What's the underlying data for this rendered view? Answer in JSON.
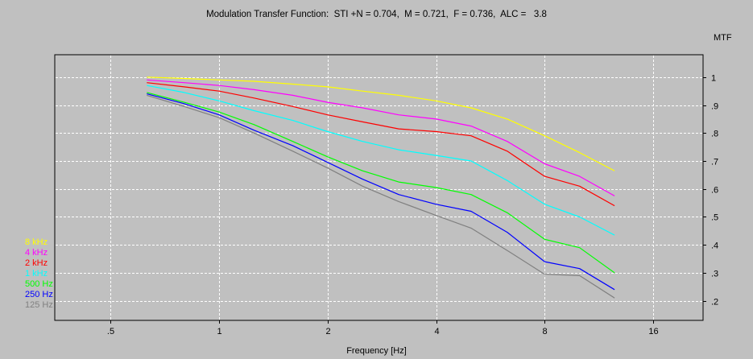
{
  "window_title": "Modulation Transfer Function:  STI +N = 0.704,  M = 0.721,  F = 0.736,  ALC =   3.8",
  "chart_data": {
    "type": "line",
    "title": "Modulation Transfer Function:  STI +N = 0.704,  M = 0.721,  F = 0.736,  ALC =   3.8",
    "xlabel": "Frequency [Hz]",
    "ylabel": "MTF",
    "x_scale": "log2",
    "xlim": [
      0.35,
      22
    ],
    "ylim": [
      0.13,
      1.08
    ],
    "x_ticks": [
      0.5,
      1,
      2,
      4,
      8,
      16
    ],
    "x_tick_labels": [
      ".5",
      "1",
      "2",
      "4",
      "8",
      "16"
    ],
    "y_ticks": [
      0.2,
      0.3,
      0.4,
      0.5,
      0.6,
      0.7,
      0.8,
      0.9,
      1.0
    ],
    "y_tick_labels": [
      ".2",
      ".3",
      ".4",
      ".5",
      ".6",
      ".7",
      ".8",
      ".9",
      "1"
    ],
    "grid": true,
    "legend_position": "left, lower",
    "x": [
      0.63,
      0.8,
      1.0,
      1.25,
      1.6,
      2.0,
      2.5,
      3.15,
      4.0,
      5.0,
      6.3,
      8.0,
      10.0,
      12.5
    ],
    "series": [
      {
        "name": "8 kHz",
        "color": "#ffff00",
        "values": [
          1.0,
          0.995,
          0.99,
          0.985,
          0.975,
          0.965,
          0.95,
          0.935,
          0.915,
          0.89,
          0.85,
          0.79,
          0.73,
          0.665
        ]
      },
      {
        "name": "4 kHz",
        "color": "#ff00ff",
        "values": [
          0.99,
          0.98,
          0.97,
          0.955,
          0.935,
          0.91,
          0.89,
          0.865,
          0.85,
          0.825,
          0.77,
          0.69,
          0.645,
          0.575
        ]
      },
      {
        "name": "2 kHz",
        "color": "#ff0000",
        "values": [
          0.98,
          0.965,
          0.95,
          0.925,
          0.895,
          0.865,
          0.84,
          0.815,
          0.805,
          0.79,
          0.735,
          0.645,
          0.61,
          0.54
        ]
      },
      {
        "name": "1 kHz",
        "color": "#00ffff",
        "values": [
          0.97,
          0.945,
          0.915,
          0.88,
          0.845,
          0.805,
          0.77,
          0.74,
          0.72,
          0.7,
          0.63,
          0.545,
          0.5,
          0.435
        ]
      },
      {
        "name": "500 Hz",
        "color": "#00ff00",
        "values": [
          0.945,
          0.91,
          0.875,
          0.83,
          0.77,
          0.715,
          0.665,
          0.625,
          0.605,
          0.58,
          0.515,
          0.42,
          0.39,
          0.3
        ]
      },
      {
        "name": "250 Hz",
        "color": "#0000ff",
        "values": [
          0.94,
          0.905,
          0.865,
          0.81,
          0.755,
          0.695,
          0.635,
          0.58,
          0.545,
          0.52,
          0.445,
          0.34,
          0.315,
          0.24
        ]
      },
      {
        "name": "125 Hz",
        "color": "#808080",
        "values": [
          0.935,
          0.895,
          0.855,
          0.8,
          0.735,
          0.675,
          0.61,
          0.555,
          0.505,
          0.46,
          0.38,
          0.295,
          0.29,
          0.21
        ]
      }
    ]
  }
}
